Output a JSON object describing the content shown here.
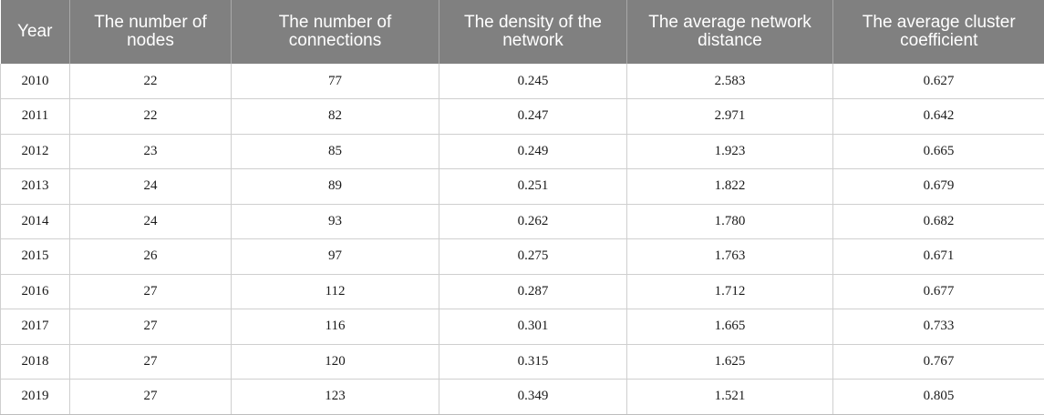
{
  "table": {
    "headers": [
      "Year",
      "The number of nodes",
      "The number of connections",
      "The density of the network",
      "The average network distance",
      "The average cluster coefficient"
    ],
    "rows": [
      [
        "2010",
        "22",
        "77",
        "0.245",
        "2.583",
        "0.627"
      ],
      [
        "2011",
        "22",
        "82",
        "0.247",
        "2.971",
        "0.642"
      ],
      [
        "2012",
        "23",
        "85",
        "0.249",
        "1.923",
        "0.665"
      ],
      [
        "2013",
        "24",
        "89",
        "0.251",
        "1.822",
        "0.679"
      ],
      [
        "2014",
        "24",
        "93",
        "0.262",
        "1.780",
        "0.682"
      ],
      [
        "2015",
        "26",
        "97",
        "0.275",
        "1.763",
        "0.671"
      ],
      [
        "2016",
        "27",
        "112",
        "0.287",
        "1.712",
        "0.677"
      ],
      [
        "2017",
        "27",
        "116",
        "0.301",
        "1.665",
        "0.733"
      ],
      [
        "2018",
        "27",
        "120",
        "0.315",
        "1.625",
        "0.767"
      ],
      [
        "2019",
        "27",
        "123",
        "0.349",
        "1.521",
        "0.805"
      ]
    ]
  },
  "colors": {
    "header_background": "#808080",
    "header_text": "#ffffff",
    "grid_line": "#cfcfcf"
  }
}
